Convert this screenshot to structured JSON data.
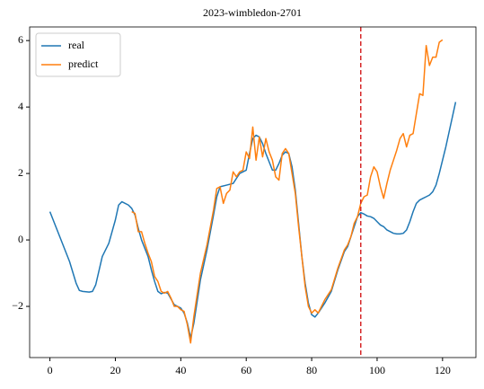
{
  "chart_data": {
    "type": "line",
    "title": "2023-wimbledon-2701",
    "xlim": [
      -6.2,
      130.2
    ],
    "ylim": [
      -3.54,
      6.41
    ],
    "xticks": [
      0,
      20,
      40,
      60,
      80,
      100,
      120
    ],
    "yticks": [
      {
        "value": -2,
        "label": "−2"
      },
      0,
      2,
      4,
      6
    ],
    "legend": "upper left",
    "vline": {
      "x": 95,
      "color": "#d62728"
    },
    "series": [
      {
        "name": "real",
        "color": "#1f77b4",
        "x": [
          0,
          2,
          4,
          6,
          8,
          9,
          10,
          12,
          13,
          14,
          16,
          18,
          20,
          21,
          22,
          24,
          25,
          26,
          27,
          28,
          30,
          31,
          32,
          33,
          34,
          35,
          36,
          38,
          40,
          41,
          42,
          43,
          44,
          46,
          48,
          50,
          51,
          52,
          54,
          56,
          57,
          58,
          60,
          61,
          62,
          63,
          64,
          65,
          66,
          67,
          68,
          69,
          70,
          71,
          72,
          73,
          74,
          75,
          76,
          77,
          78,
          79,
          80,
          81,
          82,
          84,
          86,
          88,
          90,
          91,
          92,
          93,
          94,
          95,
          96,
          97,
          98,
          99,
          100,
          101,
          102,
          103,
          104,
          105,
          106,
          107,
          108,
          109,
          110,
          111,
          112,
          113,
          114,
          115,
          116,
          117,
          118,
          119,
          120,
          121,
          122,
          123,
          124
        ],
        "values": [
          0.85,
          0.35,
          -0.15,
          -0.65,
          -1.3,
          -1.52,
          -1.55,
          -1.57,
          -1.55,
          -1.35,
          -0.5,
          -0.1,
          0.6,
          1.05,
          1.15,
          1.05,
          0.95,
          0.75,
          0.35,
          0.0,
          -0.5,
          -0.9,
          -1.25,
          -1.55,
          -1.62,
          -1.58,
          -1.6,
          -1.95,
          -2.05,
          -2.2,
          -2.5,
          -2.95,
          -2.5,
          -1.2,
          -0.3,
          0.75,
          1.3,
          1.6,
          1.65,
          1.7,
          1.85,
          2.0,
          2.1,
          2.6,
          3.05,
          3.15,
          3.1,
          2.9,
          2.6,
          2.35,
          2.1,
          2.1,
          2.3,
          2.55,
          2.65,
          2.6,
          2.2,
          1.5,
          0.5,
          -0.5,
          -1.3,
          -1.9,
          -2.25,
          -2.32,
          -2.2,
          -1.9,
          -1.55,
          -0.9,
          -0.35,
          -0.2,
          0.1,
          0.4,
          0.7,
          0.82,
          0.78,
          0.72,
          0.7,
          0.65,
          0.55,
          0.45,
          0.4,
          0.3,
          0.25,
          0.2,
          0.18,
          0.18,
          0.2,
          0.3,
          0.55,
          0.85,
          1.1,
          1.2,
          1.25,
          1.3,
          1.35,
          1.45,
          1.65,
          2.0,
          2.4,
          2.8,
          3.25,
          3.7,
          4.15
        ]
      },
      {
        "name": "predict",
        "color": "#ff7f0e",
        "x": [
          25,
          26,
          27,
          28,
          29,
          30,
          31,
          32,
          33,
          34,
          35,
          36,
          37,
          38,
          39,
          40,
          41,
          42,
          43,
          44,
          46,
          48,
          50,
          51,
          52,
          53,
          54,
          55,
          56,
          57,
          58,
          59,
          60,
          61,
          62,
          63,
          64,
          65,
          66,
          67,
          68,
          69,
          70,
          71,
          72,
          73,
          74,
          75,
          76,
          77,
          78,
          79,
          80,
          81,
          82,
          84,
          86,
          88,
          90,
          91,
          92,
          93,
          94,
          95,
          96,
          97,
          98,
          99,
          100,
          101,
          102,
          103,
          104,
          105,
          106,
          107,
          108,
          109,
          110,
          111,
          112,
          113,
          114,
          115,
          116,
          117,
          118,
          119,
          120
        ],
        "values": [
          0.85,
          0.8,
          0.25,
          0.25,
          -0.1,
          -0.4,
          -0.65,
          -1.1,
          -1.25,
          -1.55,
          -1.6,
          -1.55,
          -1.75,
          -2.0,
          -2.0,
          -2.1,
          -2.15,
          -2.55,
          -3.1,
          -2.3,
          -1.0,
          -0.15,
          0.9,
          1.55,
          1.6,
          1.1,
          1.4,
          1.5,
          2.05,
          1.9,
          2.05,
          2.1,
          2.65,
          2.45,
          3.4,
          2.4,
          3.1,
          2.5,
          3.05,
          2.65,
          2.4,
          1.9,
          1.8,
          2.6,
          2.75,
          2.6,
          2.0,
          1.4,
          0.4,
          -0.5,
          -1.4,
          -2.0,
          -2.2,
          -2.1,
          -2.2,
          -1.8,
          -1.5,
          -0.85,
          -0.3,
          -0.15,
          0.1,
          0.5,
          0.7,
          1.1,
          1.3,
          1.35,
          1.9,
          2.2,
          2.05,
          1.6,
          1.25,
          1.7,
          2.1,
          2.4,
          2.7,
          3.05,
          3.2,
          2.8,
          3.15,
          3.2,
          3.8,
          4.4,
          4.35,
          5.85,
          5.25,
          5.5,
          5.5,
          5.95,
          6.02
        ]
      }
    ]
  }
}
